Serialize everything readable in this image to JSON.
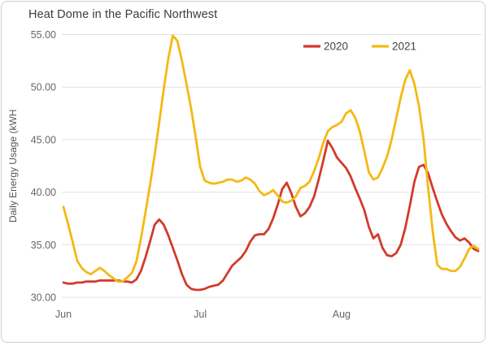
{
  "title": "Heat Dome in the Pacific Northwest",
  "colors": {
    "title_text": "#3b3b3b",
    "axis_text": "#666666",
    "gridline": "#e2e2e2",
    "card_border": "#cfcfcf",
    "series_2020": "#d23b2a",
    "series_2021": "#f4b913"
  },
  "chart_data": {
    "type": "line",
    "title": "Heat Dome in the Pacific Northwest",
    "xlabel": "",
    "ylabel": "Daily Energy Usage (kWH",
    "ylim": [
      30,
      55
    ],
    "y_ticks": [
      30,
      35,
      40,
      45,
      50,
      55
    ],
    "y_tick_labels": [
      "30.00",
      "35.00",
      "40.00",
      "45.00",
      "50.00",
      "55.00"
    ],
    "x_tick_labels": [
      "Jun",
      "Jul",
      "Aug"
    ],
    "x_tick_days": [
      0,
      30,
      61
    ],
    "days_total": 91,
    "grid": "horizontal-only",
    "legend_position": "top-inside",
    "legend": [
      "2020",
      "2021"
    ],
    "series": [
      {
        "name": "2020",
        "color": "#d23b2a",
        "values": [
          31.4,
          31.3,
          31.3,
          31.4,
          31.4,
          31.5,
          31.5,
          31.5,
          31.6,
          31.6,
          31.6,
          31.6,
          31.6,
          31.5,
          31.5,
          31.4,
          31.7,
          32.5,
          33.8,
          35.3,
          36.9,
          37.4,
          36.9,
          35.9,
          34.7,
          33.5,
          32.2,
          31.2,
          30.8,
          30.7,
          30.7,
          30.8,
          31.0,
          31.1,
          31.2,
          31.6,
          32.3,
          33.0,
          33.4,
          33.8,
          34.4,
          35.3,
          35.9,
          36.0,
          36.0,
          36.5,
          37.5,
          38.8,
          40.3,
          40.9,
          39.9,
          38.6,
          37.7,
          38.0,
          38.6,
          39.6,
          41.2,
          43.0,
          44.9,
          44.2,
          43.3,
          42.8,
          42.3,
          41.5,
          40.4,
          39.4,
          38.3,
          36.7,
          35.6,
          36.0,
          34.7,
          34.0,
          33.9,
          34.2,
          35.0,
          36.6,
          38.7,
          41.0,
          42.4,
          42.6,
          41.8,
          40.4,
          39.1,
          37.9,
          37.0,
          36.3,
          35.7,
          35.4,
          35.6,
          35.2,
          34.6,
          34.4
        ]
      },
      {
        "name": "2021",
        "color": "#f4b913",
        "values": [
          38.6,
          37.0,
          35.3,
          33.5,
          32.8,
          32.4,
          32.2,
          32.5,
          32.8,
          32.5,
          32.1,
          31.8,
          31.5,
          31.5,
          31.9,
          32.3,
          33.4,
          35.6,
          38.1,
          40.7,
          43.5,
          46.6,
          49.8,
          52.7,
          54.9,
          54.4,
          52.5,
          50.3,
          48.0,
          45.3,
          42.4,
          41.1,
          40.9,
          40.8,
          40.9,
          41.0,
          41.2,
          41.2,
          41.0,
          41.1,
          41.4,
          41.2,
          40.8,
          40.1,
          39.7,
          39.9,
          40.2,
          39.7,
          39.1,
          39.0,
          39.2,
          39.6,
          40.4,
          40.6,
          41.0,
          42.0,
          43.2,
          44.7,
          45.8,
          46.2,
          46.4,
          46.7,
          47.5,
          47.8,
          47.1,
          45.8,
          43.9,
          41.9,
          41.2,
          41.4,
          42.3,
          43.4,
          45.0,
          47.0,
          49.0,
          50.7,
          51.6,
          50.3,
          48.2,
          45.1,
          40.4,
          36.3,
          33.1,
          32.7,
          32.7,
          32.5,
          32.5,
          32.9,
          33.7,
          34.6,
          34.9,
          34.6
        ]
      }
    ]
  }
}
